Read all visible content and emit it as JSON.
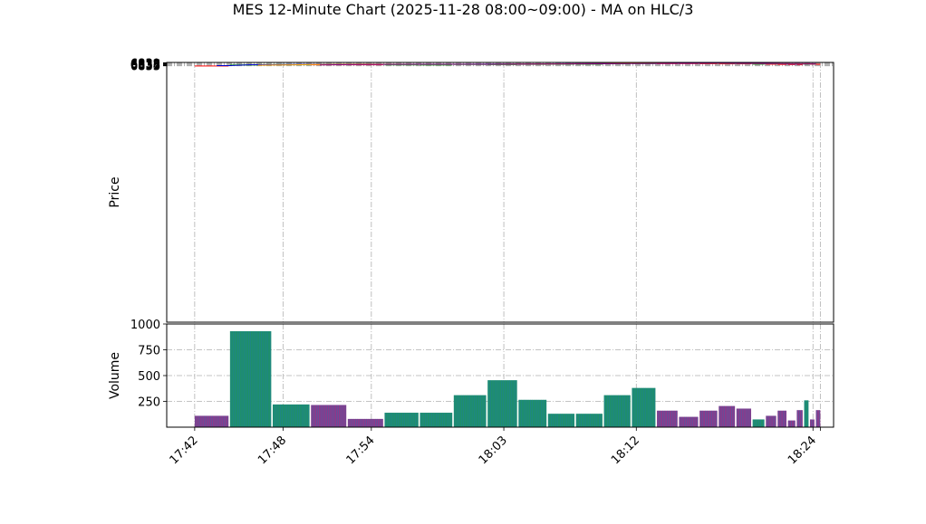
{
  "chart_data": {
    "type": "candlestick",
    "title": "MES 12-Minute Chart (2025-11-28 08:00~09:00) - MA on HLC/3",
    "price_panel": {
      "ylabel": "Price",
      "ylim": [
        6332.8,
        6839.6
      ],
      "yticks": [
        6833,
        6834,
        6835,
        6836,
        6837,
        6838,
        6839
      ],
      "grid": true
    },
    "volume_panel": {
      "ylabel": "Volume",
      "ylim": [
        0,
        1000
      ],
      "yticks": [
        250,
        500,
        750,
        1000
      ],
      "grid": true
    },
    "x_axis": {
      "tick_labels": [
        "17:42",
        "17:48",
        "17:54",
        "18:03",
        "18:12",
        "18:24"
      ],
      "tick_positions": [
        0,
        6,
        12,
        21,
        30,
        42
      ],
      "xlim": [
        -1.9,
        43.4
      ],
      "label_rotation": 45
    },
    "colors": {
      "up": "#2ca02c",
      "down": "#ff2020",
      "up_wick": "#2ca02c",
      "down_wick": "#e04040",
      "volume_up": "#1f8f6a",
      "volume_down": "#8b3a8b",
      "volume_edge": "#1f77b4",
      "ma_fast": "#0000cc",
      "ma_mid": "#ffa500",
      "ma_slow": "#800080"
    },
    "candles": [
      {
        "x": 0.0,
        "w": 2.3,
        "o": 6833.75,
        "h": 6833.75,
        "l": 6833.0,
        "c": 6833.0,
        "v": 110
      },
      {
        "x": 2.4,
        "w": 2.8,
        "o": 6833.75,
        "h": 6836.75,
        "l": 6833.25,
        "c": 6835.75,
        "v": 930
      },
      {
        "x": 5.3,
        "w": 2.5,
        "o": 6835.75,
        "h": 6836.5,
        "l": 6835.5,
        "c": 6836.25,
        "v": 220
      },
      {
        "x": 7.9,
        "w": 2.4,
        "o": 6836.25,
        "h": 6836.75,
        "l": 6835.75,
        "c": 6836.0,
        "v": 215
      },
      {
        "x": 10.4,
        "w": 2.4,
        "o": 6836.25,
        "h": 6836.5,
        "l": 6835.5,
        "c": 6836.0,
        "v": 80
      },
      {
        "x": 12.9,
        "w": 2.3,
        "o": 6835.75,
        "h": 6836.5,
        "l": 6835.5,
        "c": 6836.0,
        "v": 140
      },
      {
        "x": 15.3,
        "w": 2.2,
        "o": 6835.75,
        "h": 6836.5,
        "l": 6835.75,
        "c": 6835.75,
        "v": 140
      },
      {
        "x": 17.6,
        "w": 2.2,
        "o": 6836.0,
        "h": 6837.0,
        "l": 6834.75,
        "c": 6836.75,
        "v": 310
      },
      {
        "x": 19.9,
        "w": 2.0,
        "o": 6836.0,
        "h": 6837.5,
        "l": 6835.75,
        "c": 6836.5,
        "v": 455
      },
      {
        "x": 22.0,
        "w": 1.9,
        "o": 6836.75,
        "h": 6837.75,
        "l": 6836.0,
        "c": 6837.0,
        "v": 265
      },
      {
        "x": 24.0,
        "w": 1.8,
        "o": 6837.0,
        "h": 6837.75,
        "l": 6836.75,
        "c": 6837.25,
        "v": 130
      },
      {
        "x": 25.9,
        "w": 1.8,
        "o": 6837.0,
        "h": 6837.75,
        "l": 6836.75,
        "c": 6837.25,
        "v": 130
      },
      {
        "x": 27.8,
        "w": 1.8,
        "o": 6837.0,
        "h": 6838.75,
        "l": 6837.0,
        "c": 6838.0,
        "v": 310
      },
      {
        "x": 29.7,
        "w": 1.6,
        "o": 6838.0,
        "h": 6839.25,
        "l": 6837.75,
        "c": 6838.5,
        "v": 380
      },
      {
        "x": 31.4,
        "w": 1.4,
        "o": 6838.5,
        "h": 6839.0,
        "l": 6837.75,
        "c": 6838.25,
        "v": 160
      },
      {
        "x": 32.9,
        "w": 1.3,
        "o": 6838.5,
        "h": 6839.0,
        "l": 6837.75,
        "c": 6838.0,
        "v": 100
      },
      {
        "x": 34.3,
        "w": 1.2,
        "o": 6838.25,
        "h": 6838.75,
        "l": 6837.5,
        "c": 6837.5,
        "v": 160
      },
      {
        "x": 35.6,
        "w": 1.1,
        "o": 6838.0,
        "h": 6838.5,
        "l": 6836.75,
        "c": 6837.25,
        "v": 205
      },
      {
        "x": 36.8,
        "w": 1.0,
        "o": 6838.0,
        "h": 6838.0,
        "l": 6836.5,
        "c": 6837.0,
        "v": 180
      },
      {
        "x": 37.9,
        "w": 0.8,
        "o": 6837.0,
        "h": 6837.25,
        "l": 6837.0,
        "c": 6837.25,
        "v": 75
      },
      {
        "x": 38.8,
        "w": 0.7,
        "o": 6837.25,
        "h": 6837.25,
        "l": 6836.5,
        "c": 6836.5,
        "v": 110
      },
      {
        "x": 39.6,
        "w": 0.6,
        "o": 6836.75,
        "h": 6837.0,
        "l": 6835.75,
        "c": 6836.5,
        "v": 160
      },
      {
        "x": 40.3,
        "w": 0.5,
        "o": 6836.5,
        "h": 6837.0,
        "l": 6835.75,
        "c": 6836.25,
        "v": 65
      },
      {
        "x": 40.9,
        "w": 0.4,
        "o": 6836.25,
        "h": 6836.5,
        "l": 6835.0,
        "c": 6836.0,
        "v": 165
      },
      {
        "x": 41.4,
        "w": 0.3,
        "o": 6836.25,
        "h": 6837.5,
        "l": 6836.0,
        "c": 6837.25,
        "v": 260
      },
      {
        "x": 41.8,
        "w": 0.3,
        "o": 6837.25,
        "h": 6837.5,
        "l": 6835.75,
        "c": 6836.25,
        "v": 75
      },
      {
        "x": 42.2,
        "w": 0.3,
        "o": 6837.0,
        "h": 6837.5,
        "l": 6836.0,
        "c": 6836.5,
        "v": 165
      }
    ],
    "series": [
      {
        "key": "ma_fast",
        "x": [
          1.5,
          2.4,
          3.8,
          5.3,
          6.8,
          7.9,
          8.5,
          10.4,
          11.5,
          12.9,
          15.3,
          17.6,
          19.9,
          22.0,
          24.0,
          25.9,
          27.8,
          29.7,
          31.4,
          32.9,
          34.3,
          35.6,
          36.8,
          37.9,
          38.8,
          39.6,
          40.3,
          40.9,
          41.4,
          41.8,
          42.2
        ],
        "y": [
          6833.4,
          6833.4,
          6835.25,
          6835.25,
          6835.75,
          6836.1,
          6836.1,
          6836.25,
          6836.25,
          6836.1,
          6836.1,
          6836.1,
          6836.25,
          6836.6,
          6837.0,
          6837.3,
          6837.75,
          6838.25,
          6838.5,
          6838.4,
          6838.25,
          6837.8,
          6837.4,
          6837.3,
          6837.1,
          6836.9,
          6836.7,
          6836.35,
          6836.35,
          6836.4,
          6836.45
        ]
      },
      {
        "key": "ma_mid",
        "x": [
          4.3,
          5.3,
          6.8,
          7.9,
          8.5,
          10.4,
          11.5,
          12.9,
          15.3,
          17.6,
          19.9,
          22.0,
          24.0,
          25.9,
          27.8,
          29.7,
          31.4,
          32.9,
          34.3,
          35.6,
          36.8,
          37.9,
          38.8,
          39.6,
          40.3,
          40.9,
          41.4,
          42.2
        ],
        "y": [
          6834.1,
          6834.4,
          6835.0,
          6835.5,
          6835.7,
          6836.1,
          6836.2,
          6836.1,
          6836.05,
          6836.05,
          6836.15,
          6836.35,
          6836.75,
          6837.1,
          6837.45,
          6837.9,
          6838.25,
          6838.3,
          6838.25,
          6838.0,
          6837.8,
          6837.6,
          6837.3,
          6837.15,
          6837.05,
          6836.9,
          6836.75,
          6836.7
        ]
      },
      {
        "key": "ma_slow",
        "x": [
          8.5,
          10.4,
          11.5,
          12.9,
          15.3,
          17.6,
          19.9,
          22.0,
          24.0,
          25.9,
          27.8,
          29.7,
          31.4,
          32.9,
          34.3,
          35.6,
          36.8,
          37.9,
          38.8,
          39.6,
          40.3,
          40.9,
          41.4,
          42.2
        ],
        "y": [
          6834.9,
          6835.4,
          6835.8,
          6835.95,
          6836.0,
          6836.05,
          6836.1,
          6836.25,
          6836.5,
          6836.75,
          6837.0,
          6837.35,
          6837.7,
          6837.9,
          6838.05,
          6838.15,
          6838.1,
          6838.0,
          6837.85,
          6837.7,
          6837.55,
          6837.4,
          6837.25,
          6837.1
        ]
      }
    ]
  }
}
